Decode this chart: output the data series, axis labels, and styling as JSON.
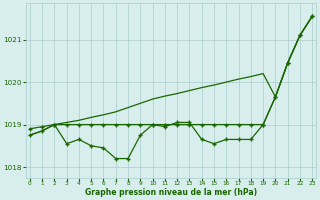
{
  "xlabel": "Graphe pression niveau de la mer (hPa)",
  "x": [
    0,
    1,
    2,
    3,
    4,
    5,
    6,
    7,
    8,
    9,
    10,
    11,
    12,
    13,
    14,
    15,
    16,
    17,
    18,
    19,
    20,
    21,
    22,
    23
  ],
  "line1": [
    1018.75,
    1018.85,
    1019.0,
    1018.55,
    1018.65,
    1018.5,
    1018.45,
    1018.2,
    1018.2,
    1018.75,
    1019.0,
    1018.95,
    1019.05,
    1019.05,
    1018.65,
    1018.55,
    1018.65,
    1018.65,
    1018.65,
    1019.0,
    1019.65,
    1020.45,
    1021.1,
    1021.55
  ],
  "line2": [
    1018.9,
    1018.95,
    1019.0,
    1019.0,
    1019.0,
    1019.0,
    1019.0,
    1019.0,
    1019.0,
    1019.0,
    1019.0,
    1019.0,
    1019.0,
    1019.0,
    1019.0,
    1019.0,
    1019.0,
    1019.0,
    1019.0,
    1019.0,
    1019.65,
    1020.45,
    1021.1,
    1021.55
  ],
  "line3": [
    1018.75,
    1018.85,
    1019.0,
    1019.05,
    1019.1,
    1019.17,
    1019.23,
    1019.3,
    1019.4,
    1019.5,
    1019.6,
    1019.67,
    1019.73,
    1019.8,
    1019.87,
    1019.93,
    1020.0,
    1020.07,
    1020.13,
    1020.2,
    1019.65,
    1020.45,
    1021.1,
    1021.55
  ],
  "bg_color": "#d8eeed",
  "grid_color": "#aacccc",
  "line_color": "#1a6600",
  "marker_color": "#1a6600",
  "text_color": "#1a6600",
  "ylim": [
    1017.75,
    1021.85
  ],
  "yticks": [
    1018,
    1019,
    1020,
    1021
  ],
  "xticks": [
    0,
    1,
    2,
    3,
    4,
    5,
    6,
    7,
    8,
    9,
    10,
    11,
    12,
    13,
    14,
    15,
    16,
    17,
    18,
    19,
    20,
    21,
    22,
    23
  ]
}
